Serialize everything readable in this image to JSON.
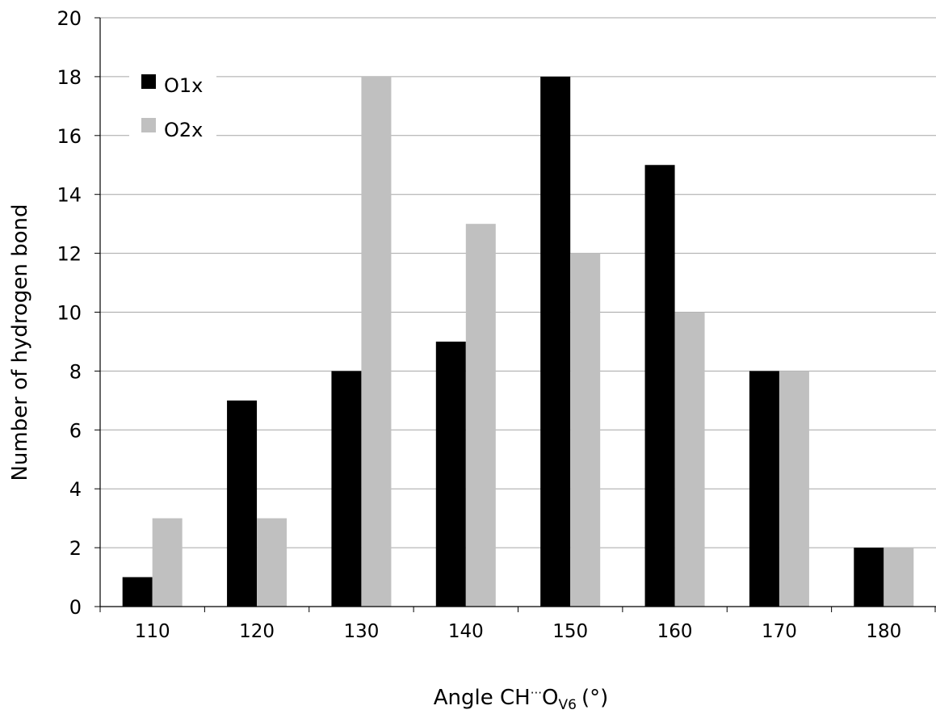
{
  "chart_data": {
    "type": "bar",
    "title": "",
    "xlabel": {
      "main": "Angle CH",
      "dots": "···",
      "atom": "O",
      "subscript": "V6",
      "unit": "(°)"
    },
    "ylabel": "Number of hydrogen bond",
    "ylim": [
      0,
      20
    ],
    "ystep": 2,
    "grid": true,
    "legend_position": "top-left",
    "categories": [
      "110",
      "120",
      "130",
      "140",
      "150",
      "160",
      "170",
      "180"
    ],
    "series": [
      {
        "name": "O1x",
        "color": "#000000",
        "values": [
          1,
          7,
          8,
          9,
          18,
          15,
          8,
          2
        ]
      },
      {
        "name": "O2x",
        "color": "#c0c0c0",
        "values": [
          3,
          3,
          18,
          13,
          12,
          10,
          8,
          2
        ]
      }
    ]
  }
}
